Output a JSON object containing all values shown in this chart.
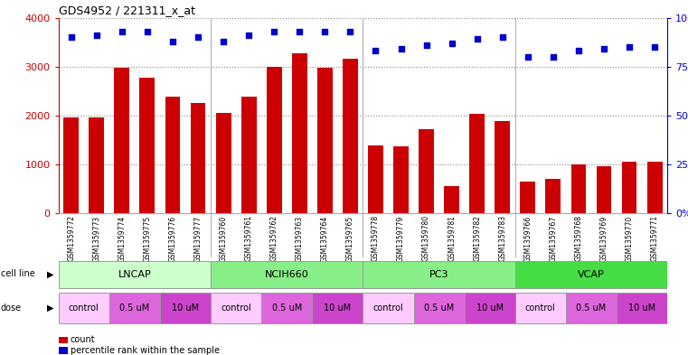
{
  "title": "GDS4952 / 221311_x_at",
  "samples": [
    "GSM1359772",
    "GSM1359773",
    "GSM1359774",
    "GSM1359775",
    "GSM1359776",
    "GSM1359777",
    "GSM1359760",
    "GSM1359761",
    "GSM1359762",
    "GSM1359763",
    "GSM1359764",
    "GSM1359765",
    "GSM1359778",
    "GSM1359779",
    "GSM1359780",
    "GSM1359781",
    "GSM1359782",
    "GSM1359783",
    "GSM1359766",
    "GSM1359767",
    "GSM1359768",
    "GSM1359769",
    "GSM1359770",
    "GSM1359771"
  ],
  "counts": [
    1950,
    1950,
    2980,
    2780,
    2380,
    2250,
    2050,
    2380,
    3000,
    3280,
    2970,
    3160,
    1380,
    1360,
    1720,
    550,
    2040,
    1890,
    640,
    700,
    1000,
    960,
    1050,
    1050
  ],
  "percentile_ranks": [
    90,
    91,
    93,
    93,
    88,
    90,
    88,
    91,
    93,
    93,
    93,
    93,
    83,
    84,
    86,
    87,
    89,
    90,
    80,
    80,
    83,
    84,
    85,
    85
  ],
  "bar_color": "#cc0000",
  "dot_color": "#0000cc",
  "ylim_left": [
    0,
    4000
  ],
  "ylim_right": [
    0,
    100
  ],
  "yticks_left": [
    0,
    1000,
    2000,
    3000,
    4000
  ],
  "yticks_right": [
    0,
    25,
    50,
    75,
    100
  ],
  "cell_line_groups": [
    {
      "name": "LNCAP",
      "start": 0,
      "end": 6,
      "color": "#ccffcc"
    },
    {
      "name": "NCIH660",
      "start": 6,
      "end": 12,
      "color": "#88ee88"
    },
    {
      "name": "PC3",
      "start": 12,
      "end": 18,
      "color": "#88ee88"
    },
    {
      "name": "VCAP",
      "start": 18,
      "end": 24,
      "color": "#44dd44"
    }
  ],
  "doses": [
    {
      "label": "control",
      "start": 0,
      "end": 2,
      "color": "#ffccff"
    },
    {
      "label": "0.5 uM",
      "start": 2,
      "end": 4,
      "color": "#dd66dd"
    },
    {
      "label": "10 uM",
      "start": 4,
      "end": 6,
      "color": "#cc44cc"
    },
    {
      "label": "control",
      "start": 6,
      "end": 8,
      "color": "#ffccff"
    },
    {
      "label": "0.5 uM",
      "start": 8,
      "end": 10,
      "color": "#dd66dd"
    },
    {
      "label": "10 uM",
      "start": 10,
      "end": 12,
      "color": "#cc44cc"
    },
    {
      "label": "control",
      "start": 12,
      "end": 14,
      "color": "#ffccff"
    },
    {
      "label": "0.5 uM",
      "start": 14,
      "end": 16,
      "color": "#dd66dd"
    },
    {
      "label": "10 uM",
      "start": 16,
      "end": 18,
      "color": "#cc44cc"
    },
    {
      "label": "control",
      "start": 18,
      "end": 20,
      "color": "#ffccff"
    },
    {
      "label": "0.5 uM",
      "start": 20,
      "end": 22,
      "color": "#dd66dd"
    },
    {
      "label": "10 uM",
      "start": 22,
      "end": 24,
      "color": "#cc44cc"
    }
  ],
  "background_color": "#ffffff",
  "grid_color": "#888888",
  "label_color_left": "#cc0000",
  "label_color_right": "#0000cc",
  "legend_count_color": "#cc0000",
  "legend_pct_color": "#0000cc",
  "xtick_bg_color": "#dddddd",
  "group_sep_color": "#aaaaaa"
}
